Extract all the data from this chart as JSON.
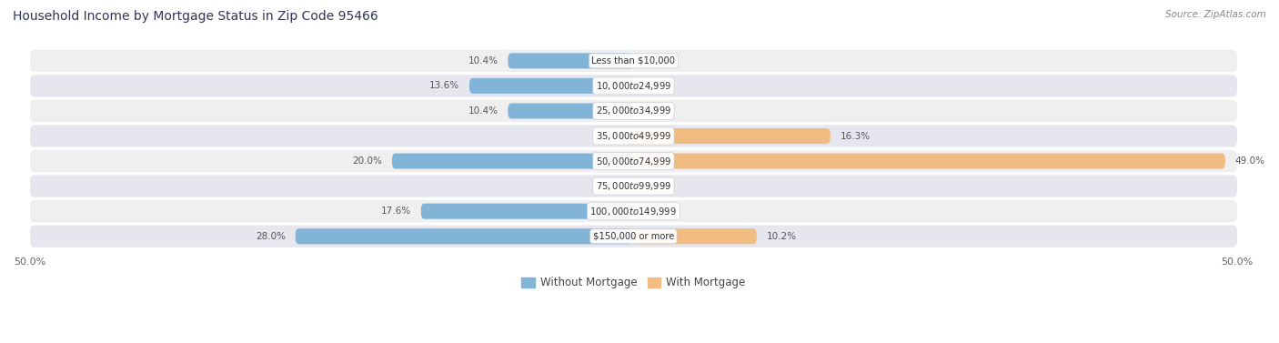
{
  "title": "Household Income by Mortgage Status in Zip Code 95466",
  "source": "Source: ZipAtlas.com",
  "categories": [
    "Less than $10,000",
    "$10,000 to $24,999",
    "$25,000 to $34,999",
    "$35,000 to $49,999",
    "$50,000 to $74,999",
    "$75,000 to $99,999",
    "$100,000 to $149,999",
    "$150,000 or more"
  ],
  "without_mortgage": [
    10.4,
    13.6,
    10.4,
    0.0,
    20.0,
    0.0,
    17.6,
    28.0
  ],
  "with_mortgage": [
    0.0,
    0.0,
    0.0,
    16.3,
    49.0,
    0.0,
    0.0,
    10.2
  ],
  "color_without": "#82b4d8",
  "color_with": "#f0bc82",
  "row_bg_odd": "#efefef",
  "row_bg_even": "#e6e6ee",
  "xlim_left": -50,
  "xlim_right": 50,
  "legend_without": "Without Mortgage",
  "legend_with": "With Mortgage",
  "figsize": [
    14.06,
    3.77
  ],
  "dpi": 100
}
